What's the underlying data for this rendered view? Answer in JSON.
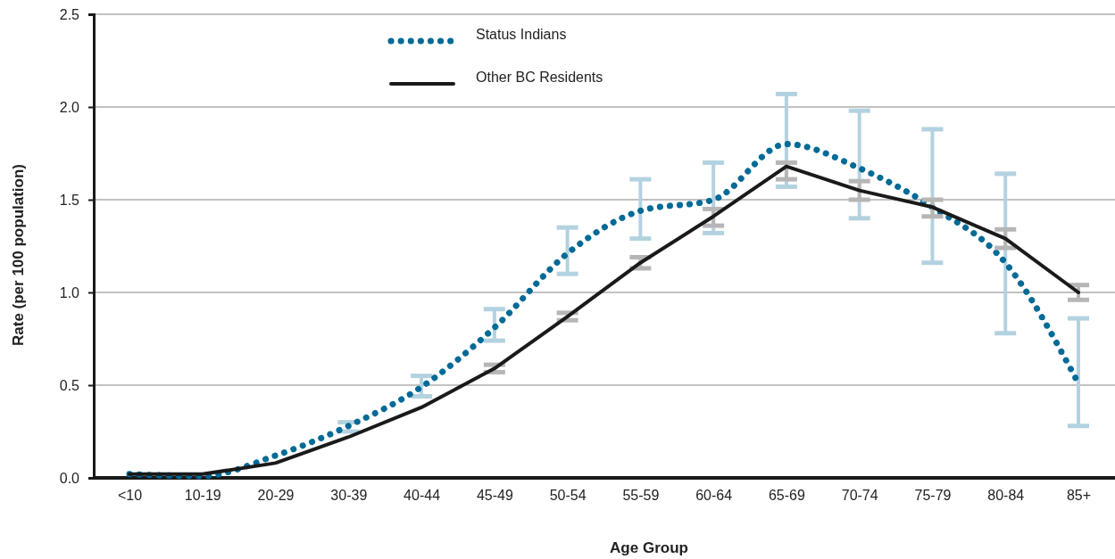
{
  "chart_data": {
    "type": "line",
    "xlabel": "Age Group",
    "ylabel": "Rate (per 100 population)",
    "categories": [
      "<10",
      "10-19",
      "20-29",
      "30-39",
      "40-44",
      "45-49",
      "50-54",
      "55-59",
      "60-64",
      "65-69",
      "70-74",
      "75-79",
      "80-84",
      "85+"
    ],
    "series": [
      {
        "name": "Status Indians",
        "color": "#006a96",
        "line_style": "dotted",
        "values": [
          0.02,
          0.01,
          0.12,
          0.28,
          0.49,
          0.81,
          1.21,
          1.44,
          1.5,
          1.8,
          1.67,
          1.46,
          1.16,
          0.51
        ],
        "errors": [
          null,
          null,
          null,
          [
            0.25,
            0.3
          ],
          [
            0.44,
            0.55
          ],
          [
            0.74,
            0.91
          ],
          [
            1.1,
            1.35
          ],
          [
            1.29,
            1.61
          ],
          [
            1.32,
            1.7
          ],
          [
            1.57,
            2.07
          ],
          [
            1.4,
            1.98
          ],
          [
            1.16,
            1.88
          ],
          [
            0.78,
            1.64
          ],
          [
            0.28,
            0.86
          ]
        ]
      },
      {
        "name": "Other BC Residents",
        "color": "#1a1a1a",
        "line_style": "solid",
        "values": [
          0.02,
          0.02,
          0.08,
          0.22,
          0.38,
          0.59,
          0.87,
          1.16,
          1.41,
          1.68,
          1.55,
          1.46,
          1.29,
          1.0
        ],
        "errors": [
          null,
          null,
          null,
          null,
          null,
          [
            0.57,
            0.61
          ],
          [
            0.85,
            0.89
          ],
          [
            1.13,
            1.19
          ],
          [
            1.36,
            1.45
          ],
          [
            1.61,
            1.7
          ],
          [
            1.5,
            1.6
          ],
          [
            1.41,
            1.5
          ],
          [
            1.24,
            1.34
          ],
          [
            0.96,
            1.04
          ]
        ]
      }
    ],
    "ylim": [
      0,
      2.5
    ],
    "yticks": [
      {
        "value": 0,
        "label": "0.0"
      },
      {
        "value": 0.5,
        "label": "0.5"
      },
      {
        "value": 1,
        "label": "1.0"
      },
      {
        "value": 1.5,
        "label": "1.5"
      },
      {
        "value": 2,
        "label": "2.0"
      },
      {
        "value": 2.5,
        "label": "2.5"
      }
    ],
    "grid": "y",
    "legend": "top left"
  }
}
